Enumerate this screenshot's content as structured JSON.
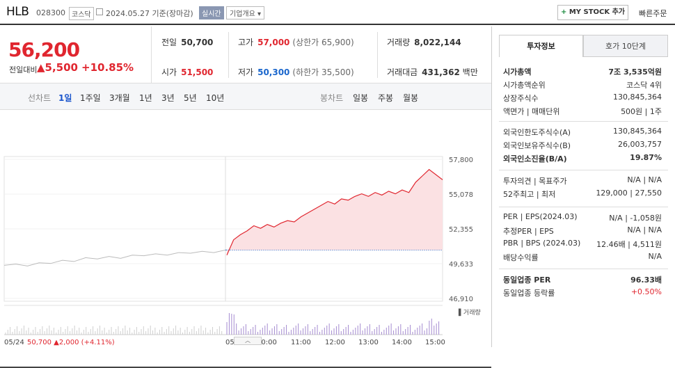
{
  "header": {
    "name": "HLB",
    "code": "028300",
    "market": "코스닥",
    "date_text": "2024.05.27  기준(장마감)",
    "realtime_label": "실시간",
    "company_info_label": "기업개요 ▾",
    "mystock_label": "MY STOCK 추가",
    "quick_order_label": "빠른주문"
  },
  "price": {
    "current": "56,200",
    "change_label": "전일대비",
    "change_value": "▲5,500",
    "change_pct": "+10.85%"
  },
  "quotes": {
    "prev_label": "전일",
    "prev_value": "50,700",
    "high_label": "고가",
    "high_value": "57,000",
    "high_sub": "(상한가 65,900)",
    "volume_label": "거래량",
    "volume_value": "8,022,144",
    "open_label": "시가",
    "open_value": "51,500",
    "low_label": "저가",
    "low_value": "50,300",
    "low_sub": "(하한가 35,500)",
    "amount_label": "거래대금",
    "amount_value": "431,362",
    "amount_unit": "백만"
  },
  "period": {
    "line_label": "선차트",
    "items": [
      "1일",
      "1주일",
      "3개월",
      "1년",
      "3년",
      "5년",
      "10년"
    ],
    "selected": "1일",
    "candle_label": "봉차트",
    "candle_items": [
      "일봉",
      "주봉",
      "월봉"
    ]
  },
  "chart_data": {
    "type": "line",
    "y_ticks": [
      "57,800",
      "55,078",
      "52,355",
      "49,633",
      "46,910"
    ],
    "ylim": [
      46910,
      57800
    ],
    "baseline": 50700,
    "x_labels": [
      "05/24",
      "05/27",
      "10:00",
      "11:00",
      "12:00",
      "13:00",
      "14:00",
      "15:00"
    ],
    "volume_label": "거래량",
    "prev_day_summary": {
      "date": "05/24",
      "close": "50,700",
      "change": "▲2,000",
      "pct": "(+4.11%)"
    },
    "prev_day_series": [
      49500,
      49600,
      49450,
      49700,
      49650,
      49900,
      49800,
      50100,
      50000,
      50200,
      50050,
      50300,
      50250,
      50400,
      50300,
      50500,
      50450,
      50600,
      50500,
      50700
    ],
    "today_series": [
      50300,
      51500,
      51900,
      52200,
      52600,
      52400,
      52700,
      52500,
      52800,
      53000,
      52900,
      53300,
      53600,
      53900,
      54200,
      54500,
      54300,
      54700,
      54600,
      54900,
      55100,
      54900,
      55200,
      55000,
      55300,
      55100,
      55400,
      55200,
      56000,
      56500,
      57000,
      56600,
      56200
    ],
    "colors": {
      "today": "#e0262f",
      "prev": "#bbbbbb",
      "fill": "#fbe1e3",
      "baseline": "#1a66cc"
    }
  },
  "info": {
    "tab_invest": "투자정보",
    "tab_orderbook": "호가 10단계",
    "rows1": [
      {
        "label": "시가총액",
        "value": "7조 3,535억원",
        "bold": true
      },
      {
        "label": "시가총액순위",
        "value": "코스닥 4위"
      },
      {
        "label": "상장주식수",
        "value": "130,845,364"
      },
      {
        "label": "액면가 | 매매단위",
        "value": "500원 | 1주"
      }
    ],
    "rows2": [
      {
        "label": "외국인한도주식수(A)",
        "value": "130,845,364"
      },
      {
        "label": "외국인보유주식수(B)",
        "value": "26,003,757"
      },
      {
        "label": "외국인소진율(B/A)",
        "value": "19.87%",
        "bold": true
      }
    ],
    "rows3": [
      {
        "label": "투자의견 | 목표주가",
        "value": "N/A | N/A"
      },
      {
        "label": "52주최고 | 최저",
        "value": "129,000 | 27,550"
      }
    ],
    "rows4": [
      {
        "label": "PER | EPS(2024.03)",
        "value": "N/A | -1,058원"
      },
      {
        "label": "추정PER | EPS",
        "value": "N/A | N/A"
      },
      {
        "label": "PBR | BPS (2024.03)",
        "value": "12.46배 | 4,511원"
      },
      {
        "label": "배당수익률",
        "value": "N/A"
      }
    ],
    "rows5": [
      {
        "label": "동일업종 PER",
        "value": "96.33배",
        "bold": true
      },
      {
        "label": "동일업종 등락률",
        "value": "+0.50%"
      }
    ]
  }
}
